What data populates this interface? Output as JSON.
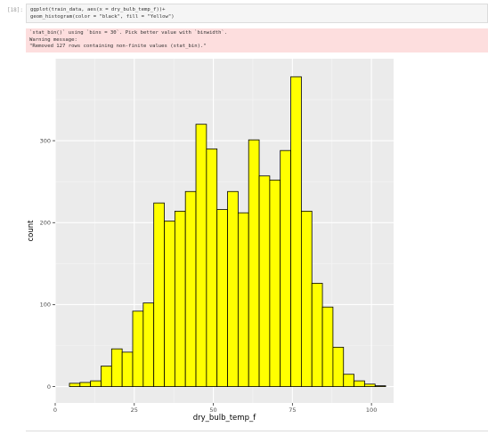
{
  "cell": {
    "prompt": "[18]:",
    "code_lines": [
      "ggplot(train_data, aes(x = dry_bulb_temp_f))+",
      "geom_histogram(color = \"black\", fill = \"Yellow\")"
    ]
  },
  "stderr": {
    "lines": [
      "`stat_bin()` using `bins = 30`. Pick better value with `binwidth`.",
      "Warning message:",
      "\"Removed 127 rows containing non-finite values (stat_bin).\""
    ]
  },
  "chart_data": {
    "type": "bar",
    "subtype": "histogram",
    "xlabel": "dry_bulb_temp_f",
    "ylabel": "count",
    "xlim": [
      0,
      107
    ],
    "ylim": [
      -20,
      400
    ],
    "x_ticks": [
      0,
      25,
      50,
      75,
      100
    ],
    "y_ticks": [
      0,
      100,
      200,
      300
    ],
    "bin_width": 3.333,
    "bin_start": 4.5,
    "values": [
      4,
      5,
      7,
      25,
      46,
      42,
      92,
      102,
      224,
      202,
      214,
      238,
      320,
      290,
      216,
      238,
      212,
      301,
      257,
      252,
      288,
      378,
      214,
      126,
      97,
      48,
      15,
      7,
      3,
      1
    ],
    "fill_color": "#ffff00",
    "edge_color": "#000000",
    "panel_color": "#ebebeb",
    "grid": true
  }
}
